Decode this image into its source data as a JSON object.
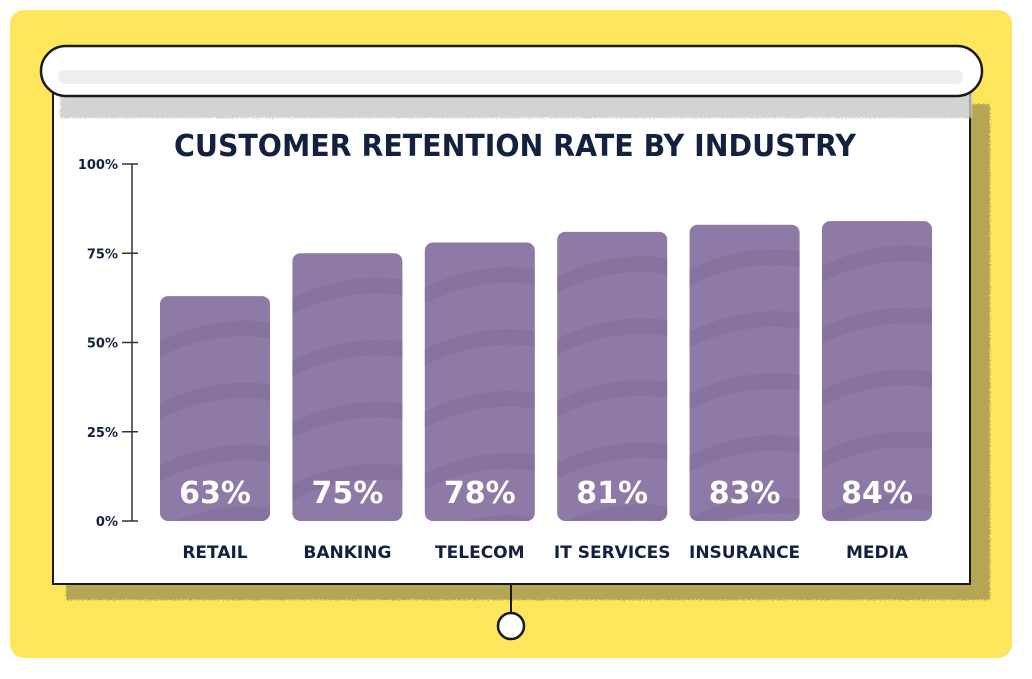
{
  "colors": {
    "background": "#fde55c",
    "screen": "#ffffff",
    "bar": "#8e7aa6",
    "text": "#13213f"
  },
  "chart_data": {
    "type": "bar",
    "title": "CUSTOMER RETENTION RATE BY INDUSTRY",
    "categories": [
      "RETAIL",
      "BANKING",
      "TELECOM",
      "IT SERVICES",
      "INSURANCE",
      "MEDIA"
    ],
    "values": [
      63,
      75,
      78,
      81,
      83,
      84
    ],
    "value_labels": [
      "63%",
      "75%",
      "78%",
      "81%",
      "83%",
      "84%"
    ],
    "y_ticks": [
      {
        "value": 0,
        "label": "0%"
      },
      {
        "value": 25,
        "label": "25%"
      },
      {
        "value": 50,
        "label": "50%"
      },
      {
        "value": 75,
        "label": "75%"
      },
      {
        "value": 100,
        "label": "100%"
      }
    ],
    "ylim": [
      0,
      100
    ],
    "xlabel": "",
    "ylabel": "",
    "grid": false,
    "legend": "none"
  }
}
